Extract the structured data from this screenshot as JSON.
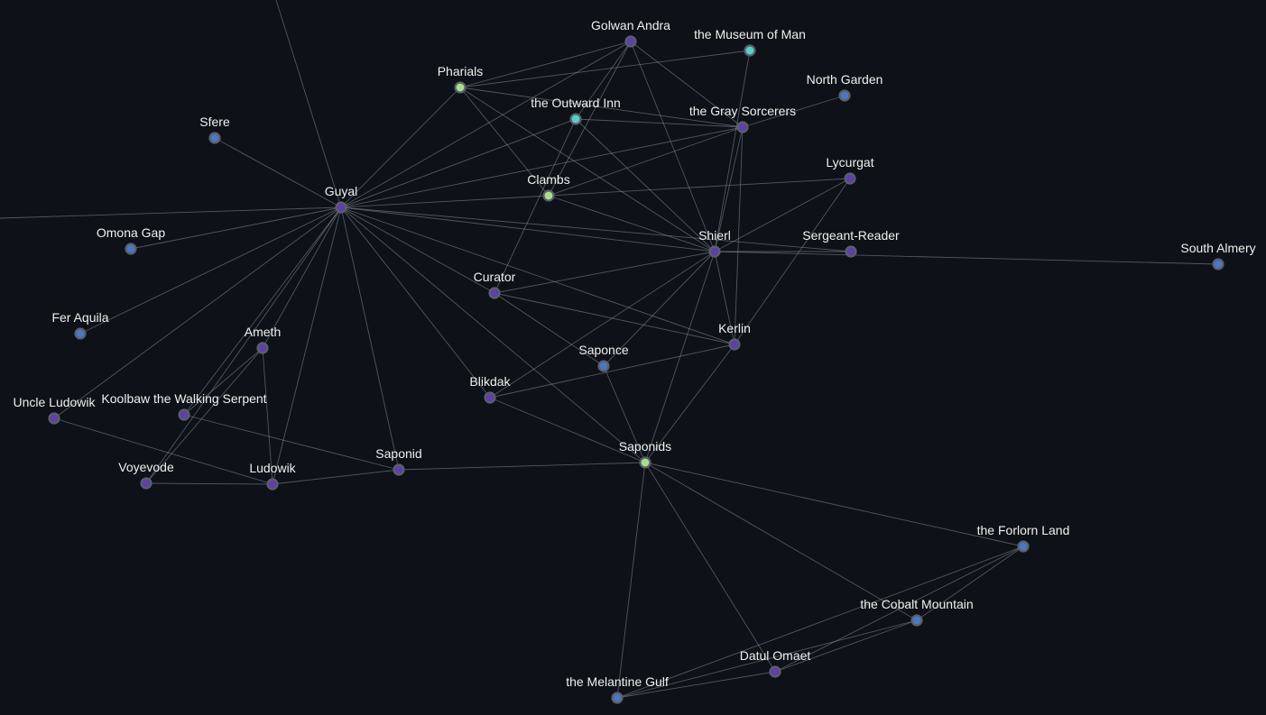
{
  "graph": {
    "background": "#0e1117",
    "edge_color": "#8b8f99",
    "node_colors": {
      "purple": "#5f3fa8",
      "blue": "#4a78c2",
      "green": "#a7e08a",
      "teal": "#5ad0c4"
    },
    "nodes": [
      {
        "id": "golwan",
        "label": "Golwan Andra",
        "color": "purple"
      },
      {
        "id": "museum",
        "label": "the Museum of Man",
        "color": "teal"
      },
      {
        "id": "pharials",
        "label": "Pharials",
        "color": "green"
      },
      {
        "id": "north",
        "label": "North Garden",
        "color": "blue"
      },
      {
        "id": "outward",
        "label": "the Outward Inn",
        "color": "teal"
      },
      {
        "id": "gray",
        "label": "the Gray Sorcerers",
        "color": "purple"
      },
      {
        "id": "sfere",
        "label": "Sfere",
        "color": "blue"
      },
      {
        "id": "lycurgat",
        "label": "Lycurgat",
        "color": "purple"
      },
      {
        "id": "clambs",
        "label": "Clambs",
        "color": "green"
      },
      {
        "id": "guyal",
        "label": "Guyal",
        "color": "purple"
      },
      {
        "id": "omona",
        "label": "Omona Gap",
        "color": "blue"
      },
      {
        "id": "shierl",
        "label": "Shierl",
        "color": "purple"
      },
      {
        "id": "sergeant",
        "label": "Sergeant-Reader",
        "color": "purple"
      },
      {
        "id": "south",
        "label": "South Almery",
        "color": "blue"
      },
      {
        "id": "curator",
        "label": "Curator",
        "color": "purple"
      },
      {
        "id": "fer",
        "label": "Fer Aquila",
        "color": "blue"
      },
      {
        "id": "ameth",
        "label": "Ameth",
        "color": "purple"
      },
      {
        "id": "kerlin",
        "label": "Kerlin",
        "color": "purple"
      },
      {
        "id": "saponce",
        "label": "Saponce",
        "color": "blue"
      },
      {
        "id": "blikdak",
        "label": "Blikdak",
        "color": "purple"
      },
      {
        "id": "uncle",
        "label": "Uncle Ludowik",
        "color": "purple"
      },
      {
        "id": "koolbaw",
        "label": "Koolbaw the Walking Serpent",
        "color": "purple"
      },
      {
        "id": "saponids",
        "label": "Saponids",
        "color": "green"
      },
      {
        "id": "saponid",
        "label": "Saponid",
        "color": "purple"
      },
      {
        "id": "voyevode",
        "label": "Voyevode",
        "color": "purple"
      },
      {
        "id": "ludowik",
        "label": "Ludowik",
        "color": "purple"
      },
      {
        "id": "forlorn",
        "label": "the Forlorn Land",
        "color": "blue"
      },
      {
        "id": "cobalt",
        "label": "the Cobalt Mountain",
        "color": "blue"
      },
      {
        "id": "datul",
        "label": "Datul Omaet",
        "color": "purple"
      },
      {
        "id": "melantine",
        "label": "the Melantine Gulf",
        "color": "blue"
      }
    ],
    "edges": [
      [
        "guyal",
        "__offtop"
      ],
      [
        "guyal",
        "__offleft"
      ],
      [
        "guyal",
        "sfere"
      ],
      [
        "guyal",
        "omona"
      ],
      [
        "guyal",
        "fer"
      ],
      [
        "guyal",
        "uncle"
      ],
      [
        "guyal",
        "ameth"
      ],
      [
        "guyal",
        "koolbaw"
      ],
      [
        "guyal",
        "voyevode"
      ],
      [
        "guyal",
        "ludowik"
      ],
      [
        "guyal",
        "saponid"
      ],
      [
        "guyal",
        "blikdak"
      ],
      [
        "guyal",
        "saponids"
      ],
      [
        "guyal",
        "curator"
      ],
      [
        "guyal",
        "kerlin"
      ],
      [
        "guyal",
        "shierl"
      ],
      [
        "guyal",
        "sergeant"
      ],
      [
        "guyal",
        "clambs"
      ],
      [
        "guyal",
        "gray"
      ],
      [
        "guyal",
        "outward"
      ],
      [
        "guyal",
        "pharials"
      ],
      [
        "guyal",
        "golwan"
      ],
      [
        "pharials",
        "golwan"
      ],
      [
        "pharials",
        "museum"
      ],
      [
        "pharials",
        "gray"
      ],
      [
        "pharials",
        "clambs"
      ],
      [
        "pharials",
        "shierl"
      ],
      [
        "golwan",
        "shierl"
      ],
      [
        "golwan",
        "gray"
      ],
      [
        "golwan",
        "outward"
      ],
      [
        "golwan",
        "clambs"
      ],
      [
        "museum",
        "shierl"
      ],
      [
        "outward",
        "gray"
      ],
      [
        "outward",
        "shierl"
      ],
      [
        "outward",
        "curator"
      ],
      [
        "gray",
        "north"
      ],
      [
        "gray",
        "shierl"
      ],
      [
        "gray",
        "clambs"
      ],
      [
        "gray",
        "kerlin"
      ],
      [
        "clambs",
        "lycurgat"
      ],
      [
        "clambs",
        "shierl"
      ],
      [
        "lycurgat",
        "shierl"
      ],
      [
        "lycurgat",
        "kerlin"
      ],
      [
        "shierl",
        "sergeant"
      ],
      [
        "shierl",
        "south"
      ],
      [
        "shierl",
        "curator"
      ],
      [
        "shierl",
        "kerlin"
      ],
      [
        "shierl",
        "saponce"
      ],
      [
        "shierl",
        "blikdak"
      ],
      [
        "shierl",
        "saponids"
      ],
      [
        "curator",
        "kerlin"
      ],
      [
        "curator",
        "saponce"
      ],
      [
        "kerlin",
        "blikdak"
      ],
      [
        "kerlin",
        "saponids"
      ],
      [
        "saponce",
        "saponids"
      ],
      [
        "blikdak",
        "saponids"
      ],
      [
        "saponids",
        "saponid"
      ],
      [
        "saponids",
        "forlorn"
      ],
      [
        "saponids",
        "cobalt"
      ],
      [
        "saponids",
        "datul"
      ],
      [
        "saponids",
        "melantine"
      ],
      [
        "ameth",
        "koolbaw"
      ],
      [
        "ameth",
        "ludowik"
      ],
      [
        "ameth",
        "voyevode"
      ],
      [
        "koolbaw",
        "saponid"
      ],
      [
        "uncle",
        "ludowik"
      ],
      [
        "voyevode",
        "ludowik"
      ],
      [
        "ludowik",
        "saponid"
      ],
      [
        "forlorn",
        "cobalt"
      ],
      [
        "forlorn",
        "datul"
      ],
      [
        "forlorn",
        "melantine"
      ],
      [
        "cobalt",
        "datul"
      ],
      [
        "cobalt",
        "melantine"
      ],
      [
        "datul",
        "melantine"
      ]
    ]
  }
}
